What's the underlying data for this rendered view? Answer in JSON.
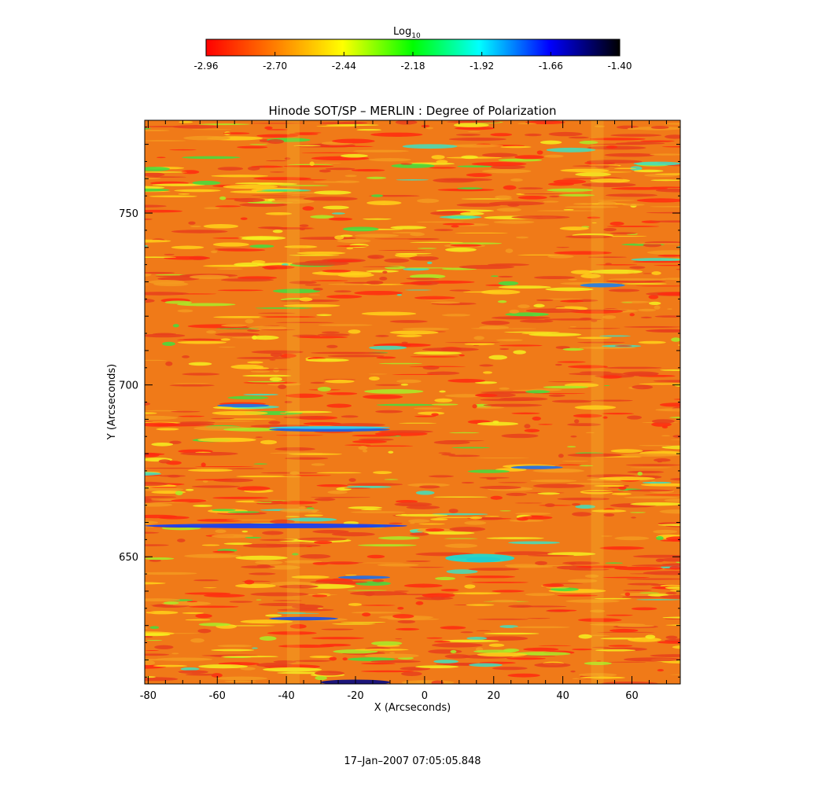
{
  "colorbar": {
    "label_main": "Log",
    "label_sub": "10",
    "ticks": [
      "-2.96",
      "-2.70",
      "-2.44",
      "-2.18",
      "-1.92",
      "-1.66",
      "-1.40"
    ],
    "range": [
      -2.96,
      -1.4
    ],
    "colormap": [
      "#ff0000",
      "#ff8000",
      "#ffff00",
      "#00ff00",
      "#00ffff",
      "#0000ff",
      "#000000"
    ]
  },
  "chart_data": {
    "type": "heatmap",
    "title": "Hinode SOT/SP – MERLIN : Degree of Polarization",
    "xlabel": "X (Arcseconds)",
    "ylabel": "Y (Arcseconds)",
    "xlim": [
      -81,
      74
    ],
    "ylim": [
      613,
      777
    ],
    "xticks": [
      -80,
      -60,
      -40,
      -20,
      0,
      20,
      40,
      60
    ],
    "yticks": [
      650,
      700,
      750
    ],
    "field": "log10 degree of polarization, mostly -2.96 to -2.6 (red/orange) with yellow/green streaks; blue streaks near Y=659, Y=687, Y=649 (X≈18), Y=632"
  },
  "footer": {
    "timestamp": "17–Jan–2007 07:05:05.848"
  }
}
